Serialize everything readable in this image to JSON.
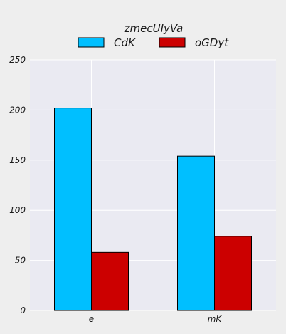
{
  "chart_data": {
    "type": "bar",
    "legend_title": "zmecUIyVa",
    "legend_placement": "top-center",
    "categories": [
      "e",
      "mK"
    ],
    "series": [
      {
        "name": "CdK",
        "color": "#00bfff",
        "values": [
          202,
          154
        ]
      },
      {
        "name": "oGDyt",
        "color": "#cc0000",
        "values": [
          58,
          74
        ]
      }
    ],
    "ylim": [
      0,
      250
    ],
    "yticks": [
      0,
      50,
      100,
      150,
      200,
      250
    ],
    "grid": true,
    "plot_background": "#eaeaf2",
    "figure_background": "#eeeeee"
  }
}
